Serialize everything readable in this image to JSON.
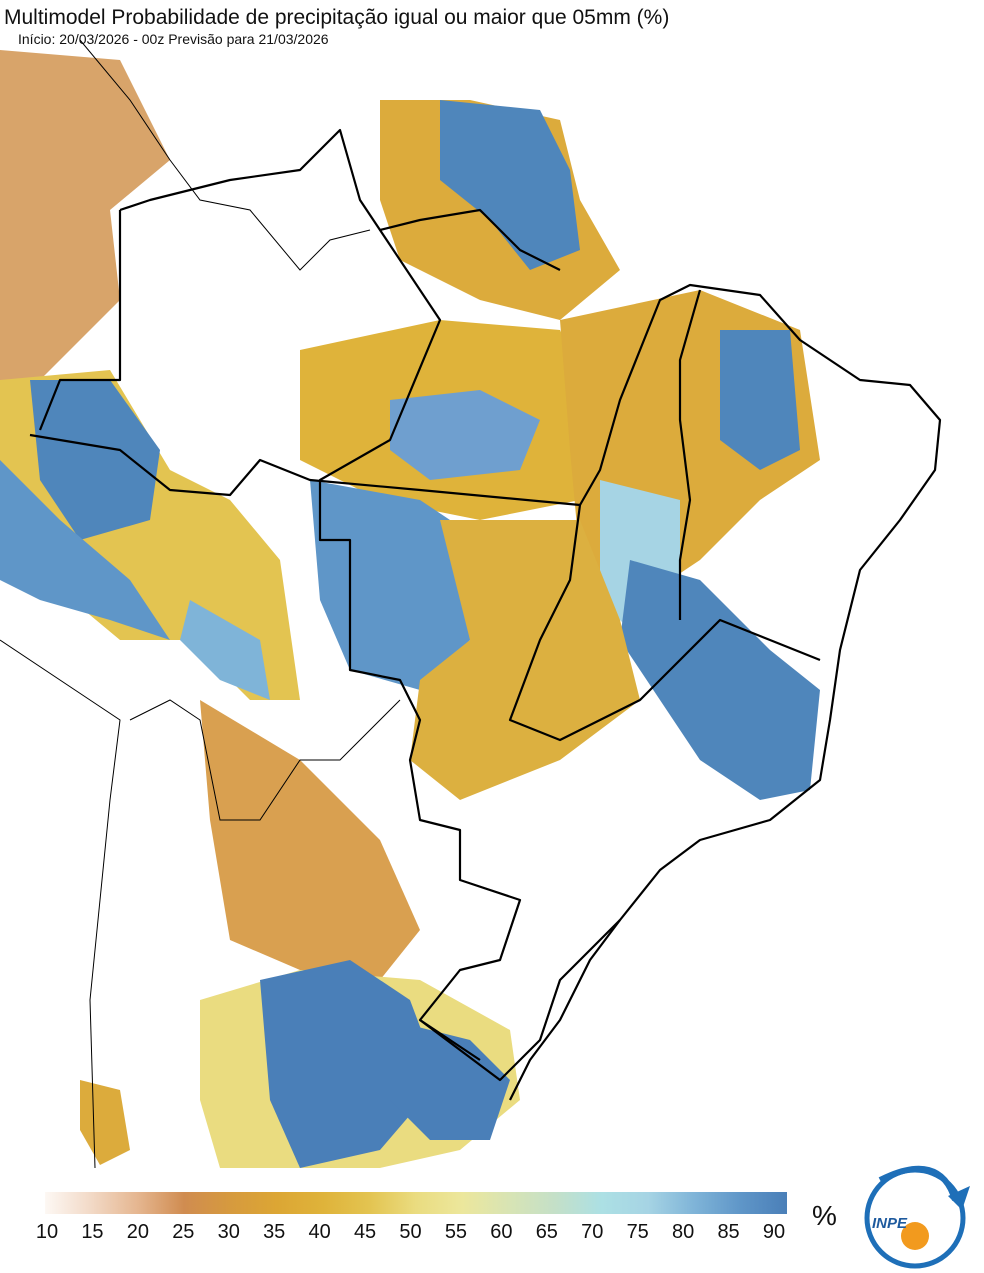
{
  "header": {
    "title": "Multimodel Probabilidade de precipitação igual ou maior que 05mm (%)",
    "subtitle": "Início: 20/03/2026 - 00z  Previsão para 21/03/2026"
  },
  "colorbar": {
    "ticks": [
      10,
      15,
      20,
      25,
      30,
      35,
      40,
      45,
      50,
      55,
      60,
      65,
      70,
      75,
      80,
      85,
      90
    ],
    "colors": [
      "#fdf8f4",
      "#f2d9c6",
      "#e5b690",
      "#d08c50",
      "#d69a3e",
      "#dca634",
      "#dfb33a",
      "#e3c451",
      "#eadc80",
      "#ece79c",
      "#d8e4b4",
      "#c4e0c8",
      "#ace0e4",
      "#a6d4e4",
      "#7fb4d8",
      "#5f96c8",
      "#4a7fb8"
    ],
    "unit": "%"
  },
  "logo": {
    "text": "INPE"
  }
}
